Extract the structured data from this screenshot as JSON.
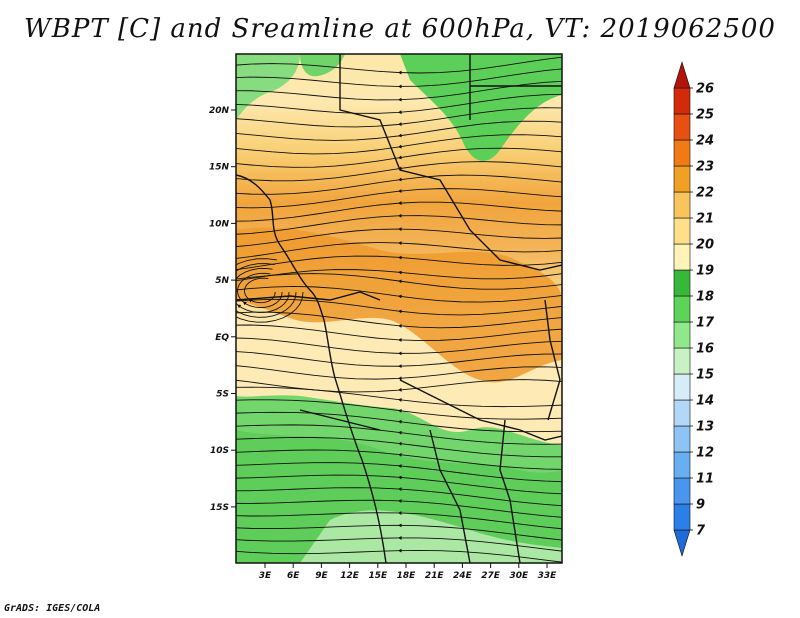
{
  "title": "WBPT [C] and Sreamline at 600hPa, VT: 2019062500",
  "footer": "GrADS: IGES/COLA",
  "map": {
    "lon_labels": [
      "3E",
      "6E",
      "9E",
      "12E",
      "15E",
      "18E",
      "21E",
      "24E",
      "27E",
      "30E",
      "33E"
    ],
    "lat_labels": [
      "20N",
      "15N",
      "10N",
      "5N",
      "EQ",
      "5S",
      "10S",
      "15S"
    ]
  },
  "colorbar": {
    "labels": [
      "7",
      "9",
      "11",
      "12",
      "13",
      "14",
      "15",
      "16",
      "17",
      "18",
      "19",
      "20",
      "21",
      "22",
      "23",
      "24",
      "25",
      "26"
    ],
    "colors": [
      "#1e6ad8",
      "#2b7fe6",
      "#4a96ee",
      "#6aaef2",
      "#8ec3f5",
      "#b3d8f7",
      "#d6ecf8",
      "#c9f2c4",
      "#90e88a",
      "#5ed35a",
      "#37b83a",
      "#fff3b8",
      "#ffe08a",
      "#f9c45c",
      "#f0a025",
      "#f07a14",
      "#e84f12",
      "#d42a0c",
      "#b2140c"
    ]
  }
}
